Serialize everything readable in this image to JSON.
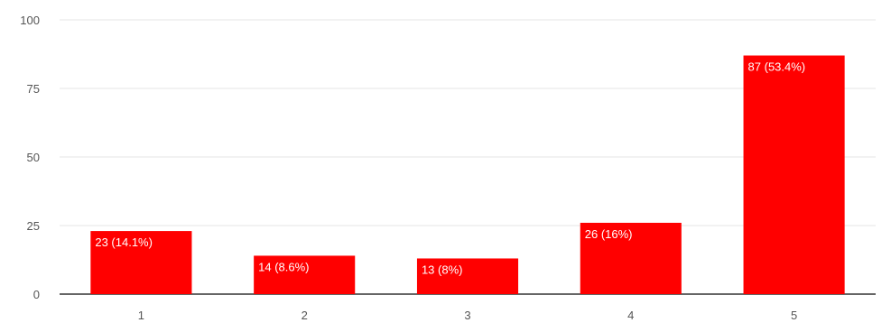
{
  "chart_data": {
    "type": "bar",
    "categories": [
      "1",
      "2",
      "3",
      "4",
      "5"
    ],
    "values": [
      23,
      14,
      13,
      26,
      87
    ],
    "data_labels": [
      "23 (14.1%)",
      "14 (8.6%)",
      "13 (8%)",
      "26 (16%)",
      "87 (53.4%)"
    ],
    "ylim": [
      0,
      100
    ],
    "yticks": [
      0,
      25,
      50,
      75,
      100
    ],
    "title": "",
    "xlabel": "",
    "ylabel": "",
    "grid": true,
    "bar_color": "#ff0000"
  }
}
